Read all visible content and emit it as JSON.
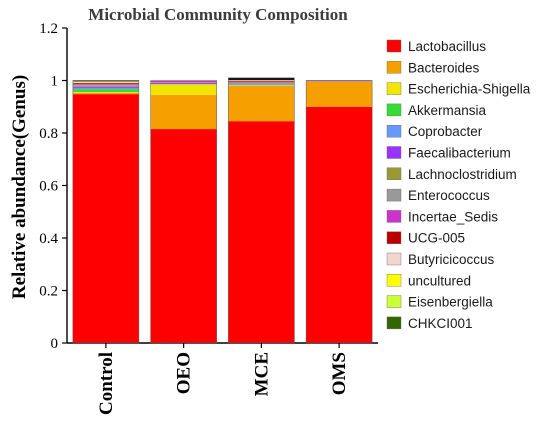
{
  "chart_data": {
    "type": "stacked-bar",
    "title": "Microbial Community Composition",
    "ylabel": "Relative abundance(Genus)",
    "xlabel": "",
    "ylim": [
      0,
      1.2
    ],
    "yticks": [
      "0",
      "0.2",
      "0.4",
      "0.6",
      "0.8",
      "1",
      "1.2"
    ],
    "categories": [
      "Control",
      "OEO",
      "MCE",
      "OMS"
    ],
    "legend_position": "right",
    "series": [
      {
        "name": "Lactobacillus",
        "color": "#ff0000",
        "values": [
          0.948,
          0.815,
          0.845,
          0.9
        ]
      },
      {
        "name": "Bacteroides",
        "color": "#f5a000",
        "values": [
          0.005,
          0.13,
          0.135,
          0.095
        ]
      },
      {
        "name": "Escherichia-Shigella",
        "color": "#f2e600",
        "values": [
          0.003,
          0.04,
          0.002,
          0.001
        ]
      },
      {
        "name": "Akkermansia",
        "color": "#33dd33",
        "values": [
          0.01,
          0.001,
          0.001,
          0.0
        ]
      },
      {
        "name": "Coprobacter",
        "color": "#6699ff",
        "values": [
          0.006,
          0.001,
          0.003,
          0.0
        ]
      },
      {
        "name": "Faecalibacterium",
        "color": "#9933ff",
        "values": [
          0.004,
          0.004,
          0.002,
          0.001
        ]
      },
      {
        "name": "Lachnoclostridium",
        "color": "#999933",
        "values": [
          0.004,
          0.001,
          0.002,
          0.0
        ]
      },
      {
        "name": "Enterococcus",
        "color": "#999999",
        "values": [
          0.004,
          0.001,
          0.003,
          0.0
        ]
      },
      {
        "name": "Incertae_Sedis",
        "color": "#cc33cc",
        "values": [
          0.004,
          0.005,
          0.003,
          0.001
        ]
      },
      {
        "name": "UCG-005",
        "color": "#bb0000",
        "values": [
          0.003,
          0.001,
          0.002,
          0.001
        ]
      },
      {
        "name": "Butyricicoccus",
        "color": "#f2d5cc",
        "values": [
          0.002,
          0.0,
          0.001,
          0.0
        ]
      },
      {
        "name": "uncultured",
        "color": "#ffff00",
        "values": [
          0.002,
          0.001,
          0.001,
          0.0
        ]
      },
      {
        "name": "Eisenbergiella",
        "color": "#ccff33",
        "values": [
          0.001,
          0.0,
          0.001,
          0.0
        ]
      },
      {
        "name": "CHKCI001",
        "color": "#336600",
        "values": [
          0.001,
          0.0,
          0.001,
          0.0
        ]
      },
      {
        "name": "",
        "color": "#111111",
        "values": [
          0.003,
          0.0,
          0.008,
          0.001
        ]
      }
    ]
  }
}
